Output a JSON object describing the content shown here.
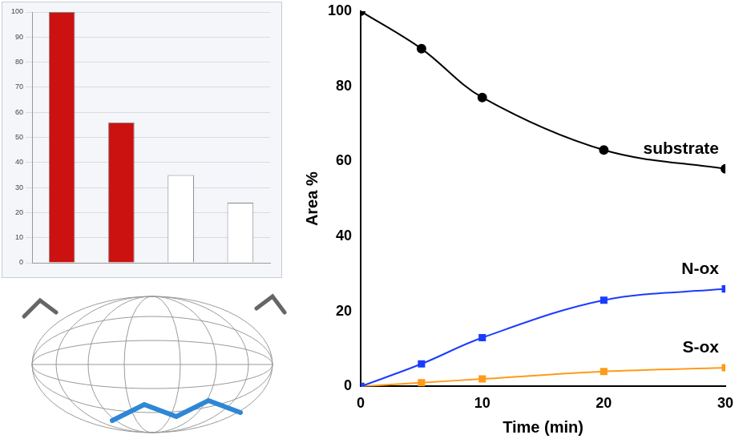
{
  "chart_data": [
    {
      "type": "bar",
      "categories": [
        null,
        null,
        null,
        null
      ],
      "values": [
        100,
        56,
        35,
        24
      ],
      "colors": [
        "#cc1111",
        "#cc1111",
        "#ffffff",
        "#ffffff"
      ],
      "ylim": [
        0,
        100
      ],
      "yticks": [
        0,
        10,
        20,
        30,
        40,
        50,
        60,
        70,
        80,
        90,
        100
      ],
      "grid": true,
      "tick_labels": "y"
    },
    {
      "type": "line",
      "x_label": "Time (min)",
      "y_label": "Area %",
      "x": [
        0,
        5,
        10,
        20,
        30
      ],
      "series": [
        {
          "name": "substrate",
          "color": "#000000",
          "marker": "circle",
          "values": [
            100,
            90,
            77,
            63,
            58
          ]
        },
        {
          "name": "N-ox",
          "color": "#1a3cff",
          "marker": "square",
          "values": [
            0,
            6,
            13,
            23,
            26
          ]
        },
        {
          "name": "S-ox",
          "color": "#ff9a1a",
          "marker": "square",
          "values": [
            0,
            1,
            2,
            4,
            5
          ]
        }
      ],
      "xlim": [
        0,
        30
      ],
      "xticks": [
        0,
        10,
        20,
        30
      ],
      "ylim": [
        0,
        100
      ],
      "yticks": [
        0,
        20,
        40,
        60,
        80,
        100
      ],
      "grid": false
    }
  ]
}
